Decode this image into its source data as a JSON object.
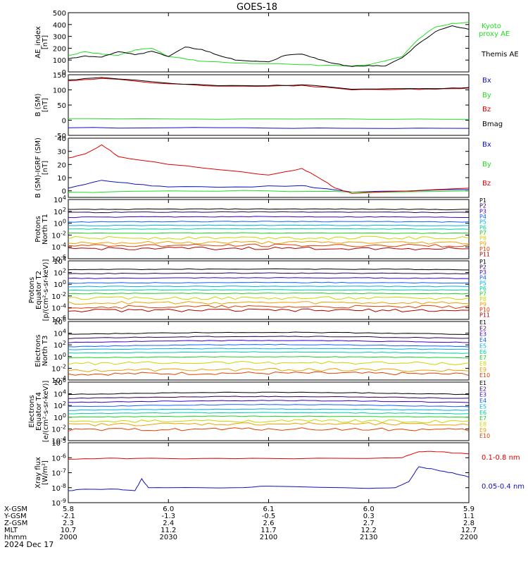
{
  "title": "GOES-18",
  "date_label": "2024 Dec 17",
  "xaxis": {
    "row_labels": [
      "X-GSM",
      "Y-GSM",
      "Z-GSM",
      "MLT",
      "hhmm"
    ],
    "ticks": [
      {
        "time": "2000",
        "values": [
          "5.8",
          "-2.1",
          "2.3",
          "10.7",
          "2000"
        ]
      },
      {
        "time": "2030",
        "values": [
          "6.0",
          "-1.3",
          "2.4",
          "11.2",
          "2030"
        ]
      },
      {
        "time": "2100",
        "values": [
          "6.1",
          "-0.5",
          "2.6",
          "11.7",
          "2100"
        ]
      },
      {
        "time": "2130",
        "values": [
          "6.0",
          "0.3",
          "2.7",
          "12.2",
          "2130"
        ]
      },
      {
        "time": "2200",
        "values": [
          "5.9",
          "1.1",
          "2.8",
          "12.7",
          "2200"
        ]
      }
    ]
  },
  "colors": {
    "black": "#000000",
    "red": "#e00000",
    "green": "#22dd22",
    "blue": "#1010c0",
    "channels": [
      "#000000",
      "#30005a",
      "#3a00c8",
      "#1060ff",
      "#00b0e0",
      "#00cfa0",
      "#20d020",
      "#c8d800",
      "#f0a000",
      "#e04000",
      "#b00000"
    ]
  },
  "chart_data": [
    {
      "type": "line",
      "panel": "AE",
      "ylabel": [
        "AE_index",
        "[nT]"
      ],
      "ylim": [
        0,
        500
      ],
      "yticks": [
        "0",
        "100",
        "200",
        "300",
        "400",
        "500"
      ],
      "ytick_values": [
        0,
        100,
        200,
        300,
        400,
        500
      ],
      "scale": "linear",
      "series": [
        {
          "name": "Kyoto",
          "name2": "proxy AE",
          "color": "#22dd22",
          "x": [
            "2000",
            "2005",
            "2010",
            "2015",
            "2020",
            "2025",
            "2030",
            "2035",
            "2040",
            "2050",
            "2100",
            "2110",
            "2120",
            "2125",
            "2130",
            "2140",
            "2145",
            "2150",
            "2155",
            "2200"
          ],
          "y": [
            140,
            170,
            150,
            140,
            185,
            200,
            130,
            110,
            90,
            75,
            70,
            60,
            55,
            50,
            60,
            130,
            280,
            380,
            410,
            420
          ]
        },
        {
          "name": "Themis AE",
          "color": "#000000",
          "x": [
            "2000",
            "2005",
            "2010",
            "2015",
            "2020",
            "2025",
            "2030",
            "2035",
            "2040",
            "2045",
            "2050",
            "2055",
            "2100",
            "2105",
            "2110",
            "2115",
            "2120",
            "2125",
            "2130",
            "2135",
            "2140",
            "2145",
            "2150",
            "2155",
            "2200"
          ],
          "y": [
            110,
            135,
            125,
            170,
            145,
            175,
            130,
            210,
            190,
            140,
            100,
            90,
            85,
            140,
            150,
            105,
            70,
            45,
            55,
            50,
            120,
            240,
            340,
            390,
            360
          ]
        }
      ]
    },
    {
      "type": "line",
      "panel": "B_SM",
      "ylabel": [
        "B (SM)",
        "[nT]"
      ],
      "ylim": [
        -50,
        150
      ],
      "yticks": [
        "-50",
        "0",
        "50",
        "100",
        "150"
      ],
      "ytick_values": [
        -50,
        0,
        50,
        100,
        150
      ],
      "scale": "linear",
      "series": [
        {
          "name": "Bx",
          "color": "#1010c0",
          "x": [
            "2000",
            "2030",
            "2100",
            "2130",
            "2200"
          ],
          "y": [
            -25,
            -25,
            -26,
            -27,
            -27
          ]
        },
        {
          "name": "By",
          "color": "#22dd22",
          "x": [
            "2000",
            "2030",
            "2100",
            "2130",
            "2200"
          ],
          "y": [
            5,
            4,
            4,
            3,
            3
          ]
        },
        {
          "name": "Bz",
          "color": "#e00000",
          "x": [
            "2000",
            "2010",
            "2030",
            "2045",
            "2100",
            "2110",
            "2125",
            "2140",
            "2150",
            "2200"
          ],
          "y": [
            130,
            138,
            120,
            112,
            112,
            115,
            100,
            102,
            102,
            106
          ]
        },
        {
          "name": "Bmag",
          "color": "#000000",
          "x": [
            "2000",
            "2010",
            "2030",
            "2045",
            "2100",
            "2110",
            "2125",
            "2140",
            "2150",
            "2200"
          ],
          "y": [
            133,
            141,
            122,
            114,
            114,
            117,
            102,
            104,
            104,
            108
          ]
        }
      ]
    },
    {
      "type": "line",
      "panel": "B_minus_IGRF",
      "ylabel": [
        "B (SM)-IGRF (SM)",
        "[nT]"
      ],
      "ylim": [
        -5,
        40
      ],
      "yticks": [
        "0",
        "10",
        "20",
        "30",
        "40"
      ],
      "ytick_values": [
        0,
        10,
        20,
        30,
        40
      ],
      "scale": "linear",
      "series": [
        {
          "name": "Bx",
          "color": "#1010c0",
          "x": [
            "2000",
            "2010",
            "2020",
            "2030",
            "2050",
            "2110",
            "2115",
            "2125",
            "2200"
          ],
          "y": [
            2,
            8,
            5,
            3,
            3,
            4,
            2,
            -1,
            1
          ]
        },
        {
          "name": "By",
          "color": "#22dd22",
          "x": [
            "2000",
            "2010",
            "2030",
            "2100",
            "2125",
            "2200"
          ],
          "y": [
            -1,
            -1,
            0,
            0,
            -1,
            0
          ]
        },
        {
          "name": "Bz",
          "color": "#e00000",
          "x": [
            "2000",
            "2005",
            "2010",
            "2015",
            "2030",
            "2050",
            "2100",
            "2110",
            "2115",
            "2120",
            "2125",
            "2200"
          ],
          "y": [
            25,
            28,
            35,
            26,
            20,
            15,
            12,
            17,
            10,
            2,
            -2,
            2
          ]
        }
      ]
    },
    {
      "type": "line",
      "panel": "Protons_T1",
      "ylabel": [
        "Protons",
        "North T1"
      ],
      "ylim": [
        -6,
        4
      ],
      "yticks": [
        "10^-6",
        "10^-4",
        "10^-2",
        "10^0",
        "10^2",
        "10^4"
      ],
      "ytick_values": [
        -6,
        -4,
        -2,
        0,
        2,
        4
      ],
      "scale": "log",
      "series_labels": [
        "P1",
        "P2",
        "P3",
        "P4",
        "P5",
        "P6",
        "P7",
        "P8",
        "P9",
        "P10",
        "P11"
      ],
      "levels": [
        2.3,
        1.8,
        1.0,
        0.2,
        -0.4,
        -1.0,
        -1.7,
        -2.5,
        -3.3,
        -3.8,
        -4.3
      ]
    },
    {
      "type": "line",
      "panel": "Protons_T2",
      "ylabel": [
        "Protons",
        "Equator T2",
        "[p/(cm²-s-sr-keV)]"
      ],
      "ylim": [
        -6,
        4
      ],
      "yticks": [
        "10^-6",
        "10^-4",
        "10^-2",
        "10^0",
        "10^2",
        "10^4"
      ],
      "ytick_values": [
        -6,
        -4,
        -2,
        0,
        2,
        4
      ],
      "scale": "log",
      "series_labels": [
        "P1",
        "P2",
        "P3",
        "P4",
        "P5",
        "P6",
        "P7",
        "P8",
        "P9",
        "P10",
        "P11"
      ],
      "levels": [
        2.5,
        1.8,
        1.0,
        0.2,
        -0.4,
        -1.0,
        -1.6,
        -2.4,
        -3.2,
        -3.9,
        -4.5
      ]
    },
    {
      "type": "line",
      "panel": "Electrons_T3",
      "ylabel": [
        "Electrons",
        "North T3"
      ],
      "ylim": [
        -4,
        6
      ],
      "yticks": [
        "10^-4",
        "10^-2",
        "10^0",
        "10^2",
        "10^4",
        "10^6"
      ],
      "ytick_values": [
        -4,
        -2,
        0,
        2,
        4,
        6
      ],
      "scale": "log",
      "series_labels": [
        "E1",
        "E2",
        "E3",
        "E4",
        "E5",
        "E6",
        "E7",
        "E8",
        "E9",
        "E10"
      ],
      "levels": [
        3.8,
        3.1,
        2.4,
        1.7,
        1.2,
        0.6,
        -0.2,
        -1.2,
        -2.4,
        -3.0
      ]
    },
    {
      "type": "line",
      "panel": "Electrons_T4",
      "ylabel": [
        "Electrons",
        "Equator T4",
        "[e/(cm²-s-sr-keV)]"
      ],
      "ylim": [
        -4,
        6
      ],
      "yticks": [
        "10^-4",
        "10^-2",
        "10^0",
        "10^2",
        "10^4",
        "10^6"
      ],
      "ytick_values": [
        -4,
        -2,
        0,
        2,
        4,
        6
      ],
      "scale": "log",
      "series_labels": [
        "E1",
        "E2",
        "E3",
        "E4",
        "E5",
        "E6",
        "E7",
        "E8",
        "E9",
        "E10"
      ],
      "levels": [
        3.9,
        3.2,
        2.5,
        1.8,
        1.2,
        0.6,
        0.0,
        -0.8,
        -1.3,
        -2.2
      ]
    },
    {
      "type": "line",
      "panel": "Xray",
      "ylabel": [
        "Xray flux",
        "[W/m²]"
      ],
      "ylim": [
        -9,
        -5
      ],
      "yticks": [
        "10^-9",
        "10^-8",
        "10^-7",
        "10^-6",
        "10^-5"
      ],
      "ytick_values": [
        -9,
        -8,
        -7,
        -6,
        -5
      ],
      "scale": "log",
      "series": [
        {
          "name": "0.1-0.8 nm",
          "color": "#e00000",
          "x": [
            "2000",
            "2010",
            "2020",
            "2040",
            "2100",
            "2130",
            "2140",
            "2145",
            "2150",
            "2200"
          ],
          "y": [
            -6.1,
            -6.05,
            -6.05,
            -6.05,
            -6.05,
            -6.05,
            -6.0,
            -5.6,
            -5.6,
            -5.75
          ]
        },
        {
          "name": "0.05-0.4 nm",
          "color": "#1010c0",
          "x": [
            "2000",
            "2005",
            "2015",
            "2020",
            "2022",
            "2024",
            "2030",
            "2050",
            "2100",
            "2130",
            "2138",
            "2142",
            "2145",
            "2150",
            "2155",
            "2200"
          ],
          "y": [
            -8.2,
            -8.1,
            -8.1,
            -8.2,
            -7.4,
            -8.0,
            -8.0,
            -8.0,
            -7.9,
            -8.05,
            -8.0,
            -7.6,
            -6.6,
            -6.8,
            -7.0,
            -7.3
          ]
        }
      ]
    }
  ]
}
